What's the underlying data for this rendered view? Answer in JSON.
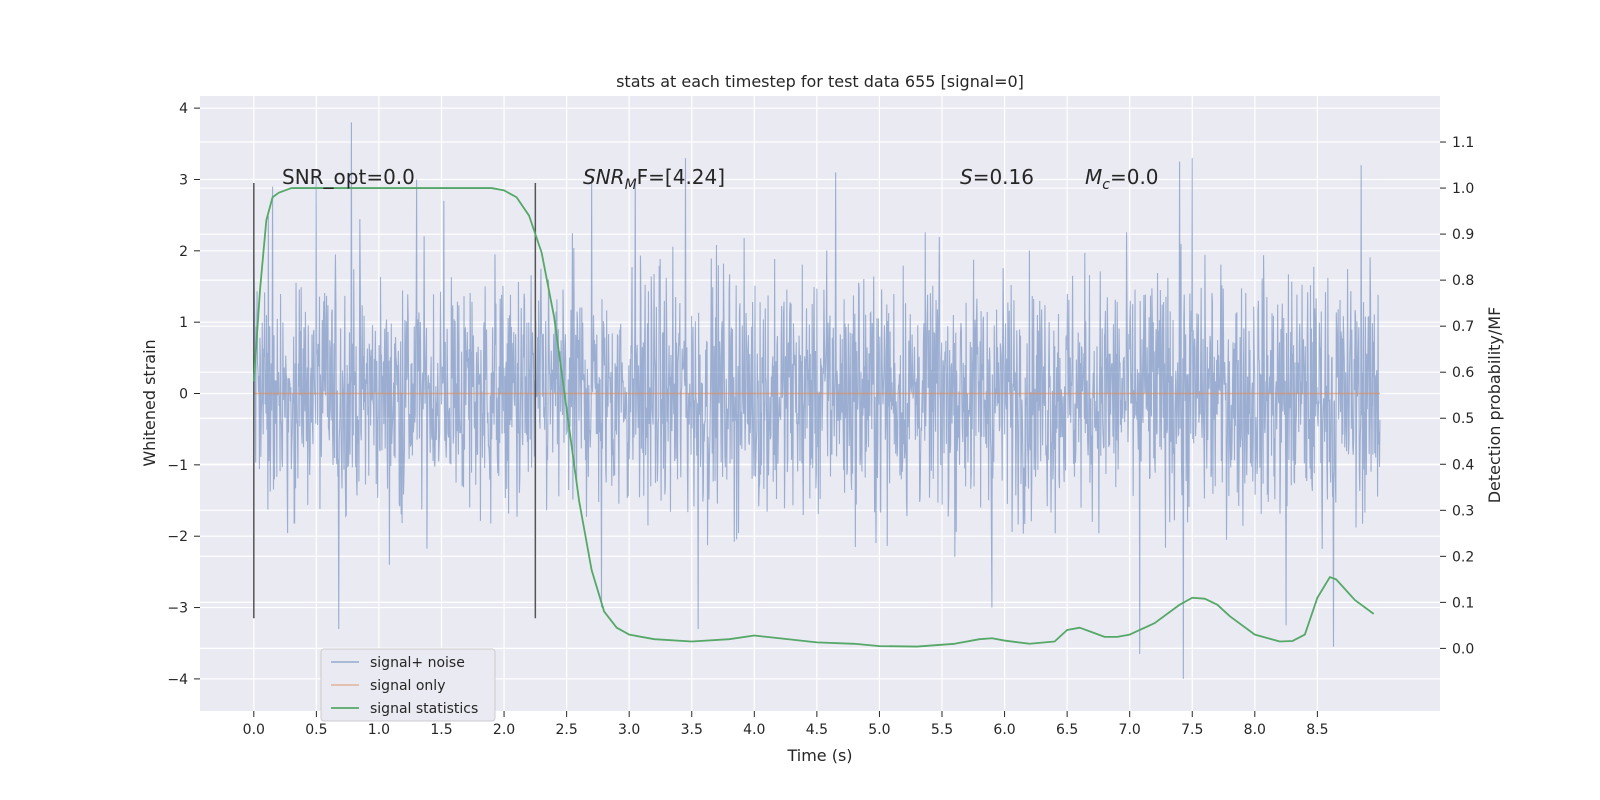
{
  "chart_data": {
    "type": "line",
    "title": "stats at each timestep for test data 655 [signal=0]",
    "xlabel": "Time (s)",
    "ylabel": "Whitened strain",
    "y2label": "Detection probability/MF",
    "xlim": [
      -0.43,
      9.48
    ],
    "ylim": [
      -4.45,
      4.17
    ],
    "y2lim": [
      -0.136,
      1.2
    ],
    "x_ticks": [
      "0.0",
      "0.5",
      "1.0",
      "1.5",
      "2.0",
      "2.5",
      "3.0",
      "3.5",
      "4.0",
      "4.5",
      "5.0",
      "5.5",
      "6.0",
      "6.5",
      "7.0",
      "7.5",
      "8.0",
      "8.5"
    ],
    "y_ticks": [
      "4",
      "3",
      "2",
      "1",
      "0",
      "−1",
      "−2",
      "−3",
      "−4"
    ],
    "y2_ticks": [
      "1.1",
      "1.0",
      "0.9",
      "0.8",
      "0.7",
      "0.6",
      "0.5",
      "0.4",
      "0.3",
      "0.2",
      "0.1",
      "0.0"
    ],
    "grid": true,
    "legend_position": "lower-left",
    "colors": {
      "noise": "#4c72b0",
      "signal": "#dd8452",
      "stats": "#55a868",
      "marker": "#555555",
      "background": "#eaeaf2",
      "grid": "#ffffff"
    },
    "annotations": {
      "snr_opt": "SNR_opt=0.0",
      "snr_mf_main": "SNR",
      "snr_mf_sub": "M",
      "snr_mf_rest": "F=[4.24]",
      "s_var": "S",
      "s_rest": "=0.16",
      "mc_var": "M",
      "mc_sub": "c",
      "mc_rest": "=0.0"
    },
    "vertical_markers": [
      {
        "x": 0.0,
        "ymin": -3.15,
        "ymax": 2.95
      },
      {
        "x": 2.25,
        "ymin": -3.15,
        "ymax": 2.95
      }
    ],
    "series": [
      {
        "name": "signal+ noise",
        "kind": "noise",
        "x_range": [
          0.0,
          9.0
        ],
        "core_amplitude": 1.15,
        "spike_peaks": [
          {
            "x": 0.0,
            "y": 2.0
          },
          {
            "x": 0.15,
            "y": 2.9
          },
          {
            "x": 0.5,
            "y": 3.05
          },
          {
            "x": 0.78,
            "y": 3.8
          },
          {
            "x": 1.3,
            "y": 3.0
          },
          {
            "x": 1.52,
            "y": 2.7
          },
          {
            "x": 2.7,
            "y": 3.0
          },
          {
            "x": 3.05,
            "y": 3.0
          },
          {
            "x": 3.45,
            "y": 3.3
          },
          {
            "x": 4.65,
            "y": 3.1
          },
          {
            "x": 7.5,
            "y": 3.3
          },
          {
            "x": 7.4,
            "y": 3.25
          },
          {
            "x": 8.85,
            "y": 3.2
          }
        ],
        "trough_peaks": [
          {
            "x": 0.68,
            "y": -3.3
          },
          {
            "x": 2.78,
            "y": -3.0
          },
          {
            "x": 3.55,
            "y": -3.3
          },
          {
            "x": 5.9,
            "y": -3.0
          },
          {
            "x": 7.08,
            "y": -3.65
          },
          {
            "x": 7.43,
            "y": -4.0
          },
          {
            "x": 8.63,
            "y": -3.55
          },
          {
            "x": 8.25,
            "y": -3.25
          }
        ]
      },
      {
        "name": "signal only",
        "kind": "signal",
        "x": [
          0.0,
          9.0
        ],
        "y": [
          0.0,
          0.0
        ]
      },
      {
        "name": "signal statistics",
        "kind": "stats",
        "x": [
          0.0,
          0.05,
          0.1,
          0.15,
          0.2,
          0.3,
          0.5,
          1.0,
          1.5,
          1.9,
          2.0,
          2.1,
          2.2,
          2.3,
          2.4,
          2.5,
          2.6,
          2.7,
          2.8,
          2.9,
          3.0,
          3.2,
          3.5,
          3.8,
          4.0,
          4.2,
          4.5,
          4.8,
          5.0,
          5.3,
          5.6,
          5.8,
          5.9,
          6.0,
          6.2,
          6.4,
          6.5,
          6.6,
          6.7,
          6.8,
          6.9,
          7.0,
          7.2,
          7.4,
          7.5,
          7.6,
          7.7,
          7.8,
          8.0,
          8.2,
          8.3,
          8.4,
          8.5,
          8.6,
          8.65,
          8.7,
          8.8,
          8.95
        ],
        "y": [
          0.58,
          0.78,
          0.93,
          0.98,
          0.99,
          1.0,
          1.0,
          1.0,
          1.0,
          1.0,
          0.995,
          0.98,
          0.94,
          0.86,
          0.72,
          0.52,
          0.32,
          0.17,
          0.08,
          0.045,
          0.03,
          0.02,
          0.015,
          0.02,
          0.028,
          0.022,
          0.013,
          0.01,
          0.005,
          0.004,
          0.01,
          0.02,
          0.022,
          0.017,
          0.01,
          0.015,
          0.04,
          0.045,
          0.035,
          0.025,
          0.025,
          0.03,
          0.055,
          0.095,
          0.11,
          0.108,
          0.095,
          0.07,
          0.03,
          0.015,
          0.016,
          0.03,
          0.11,
          0.155,
          0.15,
          0.135,
          0.105,
          0.075
        ]
      }
    ]
  }
}
